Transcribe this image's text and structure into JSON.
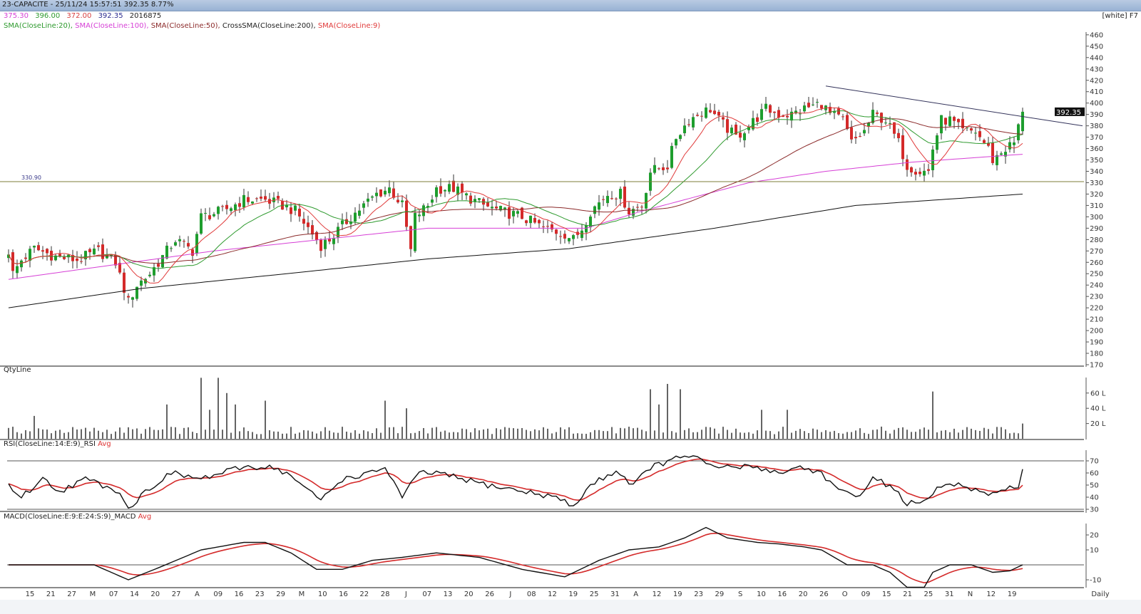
{
  "header": {
    "title": "23-CAPACITE - 25/11/24 15:57:51 392.35 8.77%",
    "theme": "[white] F7"
  },
  "ohlc": {
    "open": "375.30",
    "high": "396.00",
    "low": "372.00",
    "close": "392.35",
    "volume": "2016875"
  },
  "indicators": [
    {
      "label": "SMA(CloseLine:20),",
      "color": "#2e9a2e"
    },
    {
      "label": "SMA(CloseLine:100),",
      "color": "#d63fd6"
    },
    {
      "label": "SMA(CloseLine:50),",
      "color": "#8b2a2a"
    },
    {
      "label": "CrossSMA(CloseLine:200),",
      "color": "#222222"
    },
    {
      "label": "SMA(CloseLine:9)",
      "color": "#e03a3a"
    }
  ],
  "panels": {
    "volume": "QtyLine",
    "rsi": "RSI(CloseLine:14:E:9)_RSI",
    "rsi_avg": "Avg",
    "macd": "MACD(CloseLine:E:9:E:24:S:9)_MACD",
    "macd_avg": "Avg"
  },
  "last_price_label": "392.35",
  "hline_label": "330.90",
  "timeframe": "Daily",
  "chart_data": {
    "type": "candlestick",
    "bars": 238,
    "price_ticks": [
      170,
      180,
      190,
      200,
      210,
      220,
      230,
      240,
      250,
      260,
      270,
      280,
      290,
      300,
      310,
      320,
      330,
      340,
      350,
      360,
      370,
      380,
      390,
      400,
      410,
      420,
      430,
      440,
      450,
      460
    ],
    "price_range": [
      170,
      460
    ],
    "last_bar": {
      "open": 375.3,
      "high": 396.0,
      "low": 372.0,
      "close": 392.35
    },
    "close_path": [
      [
        0,
        270
      ],
      [
        1,
        250
      ],
      [
        3,
        262
      ],
      [
        6,
        272
      ],
      [
        11,
        265
      ],
      [
        16,
        262
      ],
      [
        21,
        270
      ],
      [
        25,
        260
      ],
      [
        28,
        225
      ],
      [
        30,
        240
      ],
      [
        33,
        250
      ],
      [
        36,
        265
      ],
      [
        39,
        280
      ],
      [
        43,
        270
      ],
      [
        45,
        300
      ],
      [
        50,
        305
      ],
      [
        55,
        315
      ],
      [
        60,
        315
      ],
      [
        64,
        310
      ],
      [
        67,
        305
      ],
      [
        70,
        290
      ],
      [
        73,
        275
      ],
      [
        75,
        280
      ],
      [
        80,
        300
      ],
      [
        83,
        310
      ],
      [
        86,
        320
      ],
      [
        89,
        325
      ],
      [
        92,
        310
      ],
      [
        94,
        270
      ],
      [
        95,
        300
      ],
      [
        98,
        310
      ],
      [
        100,
        325
      ],
      [
        104,
        325
      ],
      [
        106,
        320
      ],
      [
        111,
        310
      ],
      [
        115,
        305
      ],
      [
        120,
        300
      ],
      [
        125,
        290
      ],
      [
        130,
        285
      ],
      [
        132,
        280
      ],
      [
        134,
        290
      ],
      [
        136,
        305
      ],
      [
        140,
        320
      ],
      [
        143,
        320
      ],
      [
        145,
        305
      ],
      [
        148,
        310
      ],
      [
        150,
        340
      ],
      [
        154,
        345
      ],
      [
        156,
        370
      ],
      [
        159,
        385
      ],
      [
        161,
        390
      ],
      [
        164,
        395
      ],
      [
        166,
        385
      ],
      [
        170,
        370
      ],
      [
        173,
        380
      ],
      [
        177,
        395
      ],
      [
        180,
        390
      ],
      [
        183,
        390
      ],
      [
        186,
        395
      ],
      [
        190,
        400
      ],
      [
        192,
        390
      ],
      [
        195,
        385
      ],
      [
        197,
        365
      ],
      [
        200,
        375
      ],
      [
        202,
        390
      ],
      [
        205,
        385
      ],
      [
        208,
        365
      ],
      [
        210,
        345
      ],
      [
        213,
        340
      ],
      [
        215,
        340
      ],
      [
        216,
        360
      ],
      [
        218,
        385
      ],
      [
        220,
        385
      ],
      [
        223,
        375
      ],
      [
        226,
        375
      ],
      [
        229,
        360
      ],
      [
        230,
        350
      ],
      [
        233,
        360
      ],
      [
        235,
        365
      ],
      [
        237,
        392.35
      ]
    ],
    "sma100_path": [
      [
        0,
        245
      ],
      [
        25,
        258
      ],
      [
        48,
        270
      ],
      [
        73,
        280
      ],
      [
        98,
        290
      ],
      [
        135,
        290
      ],
      [
        148,
        305
      ],
      [
        173,
        330
      ],
      [
        191,
        340
      ],
      [
        211,
        348
      ],
      [
        237,
        355
      ]
    ],
    "sma200_path": [
      [
        0,
        220
      ],
      [
        31,
        237
      ],
      [
        65,
        250
      ],
      [
        98,
        263
      ],
      [
        131,
        272
      ],
      [
        165,
        290
      ],
      [
        198,
        310
      ],
      [
        237,
        320
      ]
    ],
    "trendline": [
      [
        191,
        415
      ],
      [
        251,
        380
      ]
    ],
    "horizontal_line": 330.9,
    "x_labels": [
      "15",
      "21",
      "27",
      "M",
      "07",
      "14",
      "20",
      "27",
      "A",
      "09",
      "16",
      "23",
      "29",
      "M",
      "10",
      "16",
      "22",
      "28",
      "J",
      "07",
      "13",
      "20",
      "26",
      "J",
      "08",
      "12",
      "19",
      "25",
      "31",
      "A",
      "12",
      "19",
      "23",
      "29",
      "S",
      "10",
      "16",
      "20",
      "26",
      "O",
      "09",
      "15",
      "21",
      "25",
      "31",
      "N",
      "12",
      "19"
    ],
    "volume": {
      "unit": "L",
      "ticks": [
        "20 L",
        "40 L",
        "60 L"
      ],
      "tick_values": [
        20,
        40,
        60
      ],
      "spikes": [
        [
          6,
          30
        ],
        [
          37,
          45
        ],
        [
          45,
          80
        ],
        [
          47,
          38
        ],
        [
          49,
          80
        ],
        [
          51,
          60
        ],
        [
          53,
          45
        ],
        [
          60,
          50
        ],
        [
          88,
          50
        ],
        [
          93,
          40
        ],
        [
          150,
          65
        ],
        [
          152,
          45
        ],
        [
          154,
          72
        ],
        [
          157,
          65
        ],
        [
          176,
          38
        ],
        [
          182,
          38
        ],
        [
          216,
          62
        ],
        [
          237,
          20
        ]
      ]
    },
    "rsi": {
      "ticks": [
        30,
        40,
        50,
        60,
        70
      ],
      "levels": [
        70,
        30
      ],
      "path": [
        [
          0,
          50
        ],
        [
          3,
          40
        ],
        [
          8,
          55
        ],
        [
          12,
          45
        ],
        [
          18,
          55
        ],
        [
          22,
          50
        ],
        [
          26,
          45
        ],
        [
          28,
          30
        ],
        [
          32,
          45
        ],
        [
          38,
          60
        ],
        [
          45,
          55
        ],
        [
          55,
          65
        ],
        [
          62,
          65
        ],
        [
          67,
          55
        ],
        [
          70,
          45
        ],
        [
          73,
          38
        ],
        [
          78,
          55
        ],
        [
          85,
          60
        ],
        [
          88,
          65
        ],
        [
          92,
          40
        ],
        [
          96,
          60
        ],
        [
          100,
          60
        ],
        [
          106,
          55
        ],
        [
          112,
          50
        ],
        [
          120,
          45
        ],
        [
          128,
          40
        ],
        [
          132,
          32
        ],
        [
          136,
          50
        ],
        [
          142,
          62
        ],
        [
          146,
          50
        ],
        [
          150,
          65
        ],
        [
          155,
          70
        ],
        [
          158,
          75
        ],
        [
          161,
          72
        ],
        [
          164,
          65
        ],
        [
          170,
          65
        ],
        [
          175,
          65
        ],
        [
          180,
          60
        ],
        [
          185,
          65
        ],
        [
          190,
          60
        ],
        [
          194,
          45
        ],
        [
          198,
          40
        ],
        [
          202,
          55
        ],
        [
          206,
          50
        ],
        [
          210,
          35
        ],
        [
          214,
          35
        ],
        [
          218,
          50
        ],
        [
          222,
          50
        ],
        [
          226,
          45
        ],
        [
          229,
          40
        ],
        [
          232,
          48
        ],
        [
          236,
          48
        ],
        [
          237,
          62
        ]
      ]
    },
    "macd": {
      "ticks": [
        -10,
        10,
        20
      ],
      "path": [
        [
          0,
          0
        ],
        [
          10,
          0
        ],
        [
          20,
          0
        ],
        [
          28,
          -10
        ],
        [
          35,
          -2
        ],
        [
          45,
          10
        ],
        [
          55,
          15
        ],
        [
          60,
          15
        ],
        [
          66,
          8
        ],
        [
          72,
          -3
        ],
        [
          78,
          -3
        ],
        [
          85,
          3
        ],
        [
          92,
          5
        ],
        [
          100,
          8
        ],
        [
          110,
          5
        ],
        [
          120,
          -3
        ],
        [
          130,
          -8
        ],
        [
          138,
          3
        ],
        [
          145,
          10
        ],
        [
          152,
          12
        ],
        [
          158,
          18
        ],
        [
          163,
          25
        ],
        [
          168,
          18
        ],
        [
          175,
          15
        ],
        [
          180,
          14
        ],
        [
          186,
          12
        ],
        [
          190,
          10
        ],
        [
          196,
          0
        ],
        [
          202,
          0
        ],
        [
          206,
          -5
        ],
        [
          210,
          -15
        ],
        [
          214,
          -15
        ],
        [
          216,
          -5
        ],
        [
          220,
          0
        ],
        [
          225,
          0
        ],
        [
          230,
          -5
        ],
        [
          234,
          -4
        ],
        [
          237,
          0
        ]
      ]
    }
  }
}
